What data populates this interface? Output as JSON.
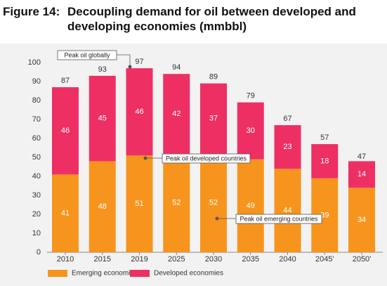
{
  "chart_data": {
    "type": "stacked_bar",
    "figure_label": "Figure 14:",
    "title": "Decoupling demand for oil between developed and developing economies (mmbbl)",
    "categories": [
      "2010",
      "2015",
      "2019",
      "2025",
      "2030",
      "2035",
      "2040",
      "2045'",
      "2050'"
    ],
    "series": [
      {
        "name": "Emerging economies",
        "color": "#f7941d",
        "values": [
          41,
          48,
          51,
          52,
          52,
          49,
          44,
          39,
          34
        ]
      },
      {
        "name": "Developed economies",
        "color": "#ee2f64",
        "values": [
          46,
          45,
          46,
          42,
          37,
          30,
          23,
          18,
          14
        ]
      }
    ],
    "totals": [
      87,
      93,
      97,
      94,
      89,
      79,
      67,
      57,
      47
    ],
    "annotations": [
      "Peak oil globally",
      "Peak oil developed countries",
      "Peak oil emerging countries"
    ],
    "ylim": [
      0,
      100
    ],
    "yticks": [
      0,
      10,
      20,
      30,
      40,
      50,
      60,
      70,
      80,
      90,
      100
    ],
    "grid": false
  }
}
